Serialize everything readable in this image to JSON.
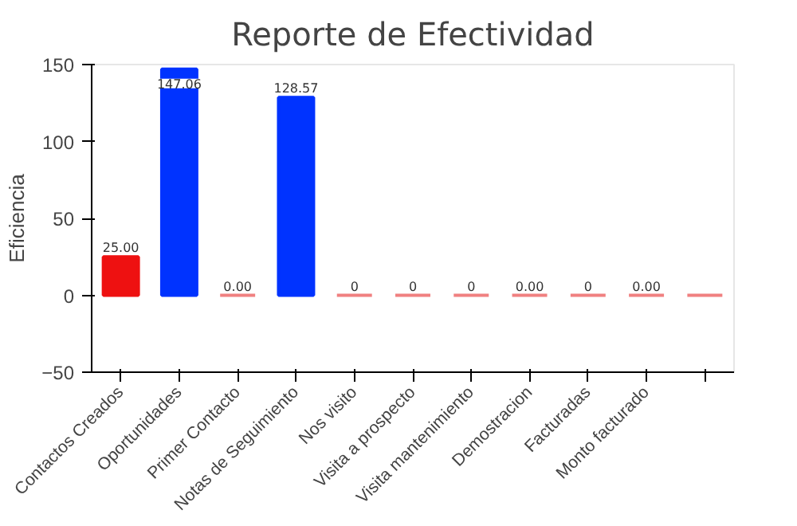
{
  "chart_data": {
    "type": "bar",
    "title": "Reporte de Efectividad",
    "ylabel": "Eficiencia",
    "categories": [
      "Contactos Creados",
      "Oportunidades",
      "Primer Contacto",
      "Notas de Seguimiento",
      "Nos visito",
      "Visita a prospecto",
      "Visita mantenimiento",
      "Demostracion",
      "Facturadas",
      "Monto facturado",
      null
    ],
    "values": [
      25,
      147.06,
      0,
      128.57,
      0,
      0,
      0,
      0,
      0,
      0,
      0
    ],
    "colors": [
      "#ee1111",
      "#0033ff",
      "#f08080",
      "#0033ff",
      "#f08080",
      "#f08080",
      "#f08080",
      "#f08080",
      "#f08080",
      "#f08080",
      "#f08080"
    ],
    "value_labels": [
      "25.00",
      "147.06",
      "0.00",
      "128.57",
      "0",
      "0",
      "0",
      "0.00",
      "0",
      "0.00",
      null
    ],
    "ylim": [
      -50,
      150
    ],
    "yticks": [
      -50,
      0,
      50,
      100,
      150
    ],
    "grid": false
  }
}
